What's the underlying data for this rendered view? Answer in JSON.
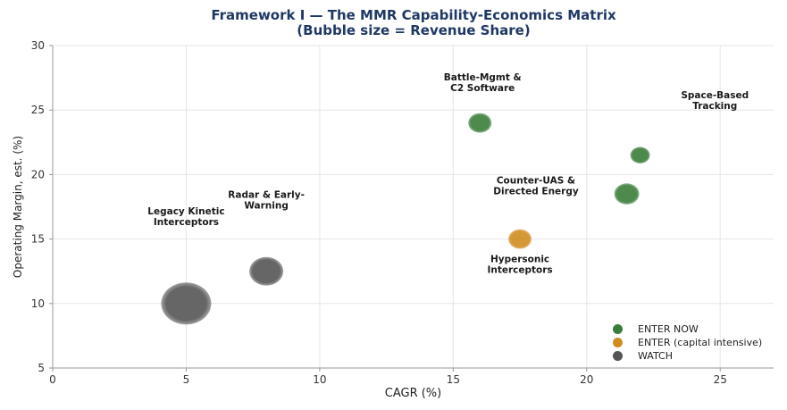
{
  "chart_data": {
    "type": "scatter",
    "title": "Framework I — The MMR Capability-Economics Matrix",
    "subtitle": "(Bubble size = Revenue Share)",
    "xlabel": "CAGR (%)",
    "ylabel": "Operating Margin, est. (%)",
    "xlim": [
      0,
      27
    ],
    "ylim": [
      5,
      30
    ],
    "xticks": [
      0,
      5,
      10,
      15,
      20,
      25
    ],
    "yticks": [
      5,
      10,
      15,
      20,
      25,
      30
    ],
    "grid": true,
    "legend_position": "bottom-right",
    "series": [
      {
        "name": "ENTER NOW",
        "color": "#3a7d3a",
        "points": [
          {
            "label": "Battle-Mgmt & C2 Software",
            "x": 16,
            "y": 24,
            "size": 13
          },
          {
            "label": "Space-Based Tracking",
            "x": 22,
            "y": 21.5,
            "size": 11
          },
          {
            "label": "Counter-UAS & Directed Energy",
            "x": 21.5,
            "y": 18.5,
            "size": 14
          }
        ]
      },
      {
        "name": "ENTER (capital intensive)",
        "color": "#d08c20",
        "points": [
          {
            "label": "Hypersonic Interceptors",
            "x": 17.5,
            "y": 15,
            "size": 13
          }
        ]
      },
      {
        "name": "WATCH",
        "color": "#555555",
        "points": [
          {
            "label": "Radar & Early-Warning",
            "x": 8,
            "y": 12.5,
            "size": 19
          },
          {
            "label": "Legacy Kinetic Interceptors",
            "x": 5,
            "y": 10,
            "size": 28
          }
        ]
      }
    ],
    "annotations": [
      {
        "text": [
          "Battle-Mgmt &",
          "C2 Software"
        ],
        "x": 16.1,
        "y": 27.3
      },
      {
        "text": [
          "Space-Based",
          "Tracking"
        ],
        "x": 24.8,
        "y": 25.9
      },
      {
        "text": [
          "Counter-UAS &",
          "Directed Energy"
        ],
        "x": 18.1,
        "y": 19.3
      },
      {
        "text": [
          "Hypersonic",
          "Interceptors"
        ],
        "x": 17.5,
        "y": 13.2
      },
      {
        "text": [
          "Radar & Early-",
          "Warning"
        ],
        "x": 8,
        "y": 18.2
      },
      {
        "text": [
          "Legacy Kinetic",
          "Interceptors"
        ],
        "x": 5,
        "y": 16.9
      }
    ]
  }
}
